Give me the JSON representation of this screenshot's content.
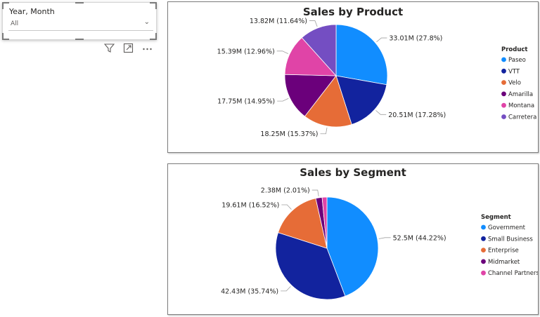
{
  "slicer": {
    "title": "Year, Month",
    "value": "All"
  },
  "icons": [
    "filter-icon",
    "focus-mode-icon",
    "more-options-icon"
  ],
  "chart_data": [
    {
      "type": "pie",
      "title": "Sales by Product",
      "legend_title": "Product",
      "legend_position": "right",
      "slices": [
        {
          "label": "Paseo",
          "value": 33.01,
          "value_label": "33.01M (27.8%)",
          "color": "#118DFF"
        },
        {
          "label": "VTT",
          "value": 20.51,
          "value_label": "20.51M (17.28%)",
          "color": "#12239E"
        },
        {
          "label": "Velo",
          "value": 18.25,
          "value_label": "18.25M (15.37%)",
          "color": "#E66C37"
        },
        {
          "label": "Amarilla",
          "value": 17.75,
          "value_label": "17.75M (14.95%)",
          "color": "#6B007B"
        },
        {
          "label": "Montana",
          "value": 15.39,
          "value_label": "15.39M (12.96%)",
          "color": "#E044A7"
        },
        {
          "label": "Carretera",
          "value": 13.82,
          "value_label": "13.82M (11.64%)",
          "color": "#744EC2"
        }
      ]
    },
    {
      "type": "pie",
      "title": "Sales by Segment",
      "legend_title": "Segment",
      "legend_position": "right",
      "slices": [
        {
          "label": "Government",
          "value": 52.5,
          "value_label": "52.5M (44.22%)",
          "color": "#118DFF"
        },
        {
          "label": "Small Business",
          "value": 42.43,
          "value_label": "42.43M (35.74%)",
          "color": "#12239E"
        },
        {
          "label": "Enterprise",
          "value": 19.61,
          "value_label": "19.61M (16.52%)",
          "color": "#E66C37"
        },
        {
          "label": "Midmarket",
          "value": 2.38,
          "value_label": "2.38M (2.01%)",
          "color": "#6B007B"
        },
        {
          "label": "Channel Partners",
          "value": 1.8,
          "value_label": "",
          "color": "#E044A7"
        }
      ]
    }
  ]
}
